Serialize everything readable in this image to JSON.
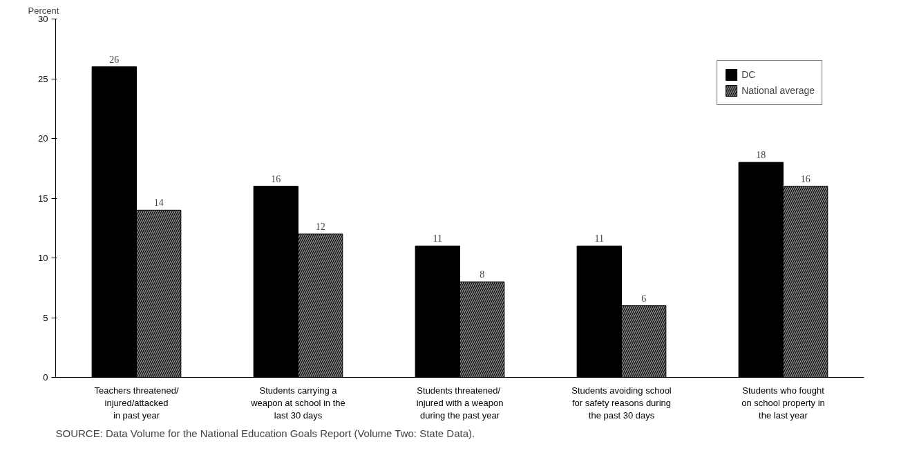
{
  "chart_data": {
    "type": "bar",
    "ylabel": "Percent",
    "categories": [
      "Teachers threatened/\ninjured/attacked\nin past year",
      "Students carrying a\nweapon at school in the\nlast 30 days",
      "Students  threatened/\ninjured with a weapon\nduring the past year",
      "Students avoiding school\nfor safety reasons during\nthe past 30 days",
      "Students who fought\non school property in\nthe last year"
    ],
    "series": [
      {
        "name": "DC",
        "color": "#000000",
        "values": [
          26,
          16,
          11,
          11,
          18
        ]
      },
      {
        "name": "National average",
        "color": "#8a8a8a",
        "values": [
          14,
          12,
          8,
          6,
          16
        ]
      }
    ],
    "ylim": [
      0,
      30
    ],
    "yticks": [
      0,
      5,
      10,
      15,
      20,
      25,
      30
    ],
    "grid": false,
    "legend": "top right",
    "data_labels": true,
    "annotations": [
      "SOURCE:  Data Volume for the National Education Goals Report (Volume Two:  State Data)."
    ]
  }
}
